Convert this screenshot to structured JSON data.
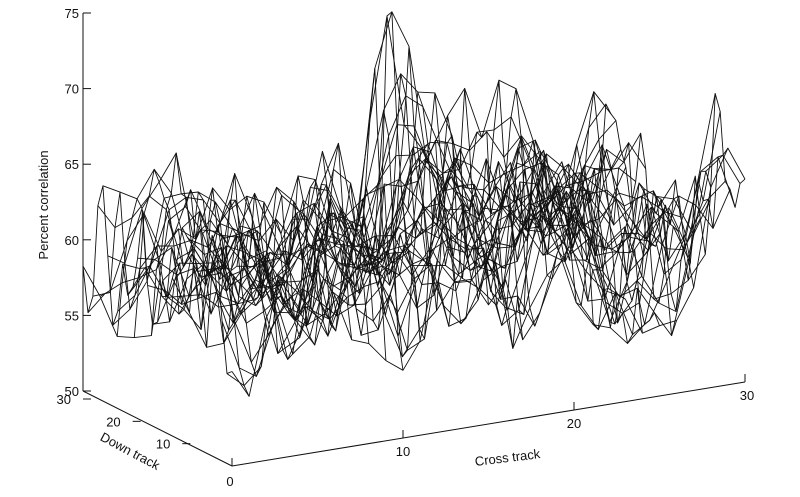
{
  "chart_data": {
    "type": "surface",
    "title": "",
    "zlabel": "Percent correlation",
    "xlabel": "Cross track",
    "ylabel": "Down track",
    "zlim": [
      50,
      75
    ],
    "xlim": [
      0,
      30
    ],
    "ylim": [
      0,
      30
    ],
    "z_ticks": [
      50,
      55,
      60,
      65,
      70,
      75
    ],
    "x_ticks": [
      0,
      10,
      20,
      30
    ],
    "y_ticks": [
      10,
      20,
      30
    ],
    "grid": false,
    "peak": {
      "cross_track": 14,
      "down_track": 16,
      "value": 74
    },
    "secondary_peak": {
      "cross_track": 22,
      "down_track": 22,
      "value": 69
    },
    "baseline_mean": 59,
    "min_observed": 50.5,
    "mesh_resolution": 31
  }
}
